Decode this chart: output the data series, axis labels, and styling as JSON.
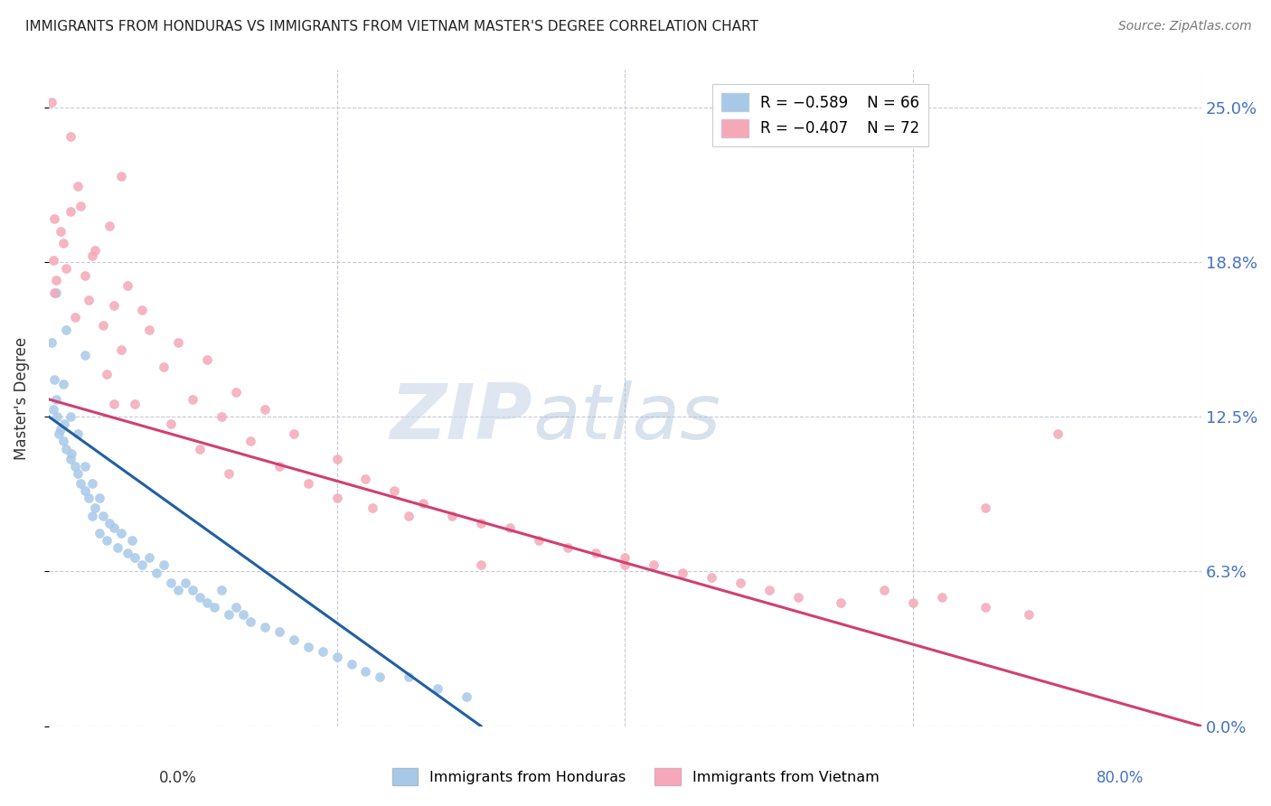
{
  "title": "IMMIGRANTS FROM HONDURAS VS IMMIGRANTS FROM VIETNAM MASTER'S DEGREE CORRELATION CHART",
  "source": "Source: ZipAtlas.com",
  "ylabel": "Master's Degree",
  "ytick_labels": [
    "0.0%",
    "6.3%",
    "12.5%",
    "18.8%",
    "25.0%"
  ],
  "ytick_values": [
    0.0,
    6.25,
    12.5,
    18.75,
    25.0
  ],
  "xlim": [
    0.0,
    80.0
  ],
  "ylim": [
    0.0,
    26.5
  ],
  "legend_r1": "R = −0.589",
  "legend_n1": "N = 66",
  "legend_r2": "R = −0.407",
  "legend_n2": "N = 72",
  "watermark_zip": "ZIP",
  "watermark_atlas": "atlas",
  "color_honduras": "#a8c8e8",
  "color_vietnam": "#f4a8b8",
  "color_line_honduras": "#2060a0",
  "color_line_vietnam": "#d04070",
  "color_yticks": "#4472c4",
  "marker_size": 60,
  "scatter_honduras": [
    [
      0.3,
      12.8
    ],
    [
      0.4,
      14.0
    ],
    [
      0.5,
      13.2
    ],
    [
      0.6,
      12.5
    ],
    [
      0.7,
      11.8
    ],
    [
      0.8,
      12.0
    ],
    [
      1.0,
      11.5
    ],
    [
      1.0,
      13.8
    ],
    [
      1.1,
      12.2
    ],
    [
      1.2,
      11.2
    ],
    [
      1.5,
      12.5
    ],
    [
      1.5,
      10.8
    ],
    [
      1.6,
      11.0
    ],
    [
      1.8,
      10.5
    ],
    [
      2.0,
      10.2
    ],
    [
      2.0,
      11.8
    ],
    [
      2.2,
      9.8
    ],
    [
      2.5,
      10.5
    ],
    [
      2.5,
      9.5
    ],
    [
      2.8,
      9.2
    ],
    [
      3.0,
      9.8
    ],
    [
      3.0,
      8.5
    ],
    [
      3.2,
      8.8
    ],
    [
      3.5,
      9.2
    ],
    [
      3.5,
      7.8
    ],
    [
      3.8,
      8.5
    ],
    [
      4.0,
      7.5
    ],
    [
      4.2,
      8.2
    ],
    [
      4.5,
      8.0
    ],
    [
      4.8,
      7.2
    ],
    [
      5.0,
      7.8
    ],
    [
      5.5,
      7.0
    ],
    [
      5.8,
      7.5
    ],
    [
      6.0,
      6.8
    ],
    [
      6.5,
      6.5
    ],
    [
      7.0,
      6.8
    ],
    [
      7.5,
      6.2
    ],
    [
      8.0,
      6.5
    ],
    [
      8.5,
      5.8
    ],
    [
      9.0,
      5.5
    ],
    [
      9.5,
      5.8
    ],
    [
      10.0,
      5.5
    ],
    [
      10.5,
      5.2
    ],
    [
      11.0,
      5.0
    ],
    [
      11.5,
      4.8
    ],
    [
      12.0,
      5.5
    ],
    [
      12.5,
      4.5
    ],
    [
      13.0,
      4.8
    ],
    [
      13.5,
      4.5
    ],
    [
      14.0,
      4.2
    ],
    [
      15.0,
      4.0
    ],
    [
      16.0,
      3.8
    ],
    [
      17.0,
      3.5
    ],
    [
      18.0,
      3.2
    ],
    [
      19.0,
      3.0
    ],
    [
      20.0,
      2.8
    ],
    [
      21.0,
      2.5
    ],
    [
      22.0,
      2.2
    ],
    [
      23.0,
      2.0
    ],
    [
      25.0,
      2.0
    ],
    [
      27.0,
      1.5
    ],
    [
      29.0,
      1.2
    ],
    [
      0.2,
      15.5
    ],
    [
      1.2,
      16.0
    ],
    [
      2.5,
      15.0
    ],
    [
      0.5,
      17.5
    ]
  ],
  "scatter_vietnam": [
    [
      0.2,
      25.2
    ],
    [
      1.5,
      23.8
    ],
    [
      5.0,
      22.2
    ],
    [
      2.0,
      21.8
    ],
    [
      2.2,
      21.0
    ],
    [
      1.5,
      20.8
    ],
    [
      0.4,
      20.5
    ],
    [
      0.8,
      20.0
    ],
    [
      4.2,
      20.2
    ],
    [
      1.0,
      19.5
    ],
    [
      3.2,
      19.2
    ],
    [
      3.0,
      19.0
    ],
    [
      0.3,
      18.8
    ],
    [
      1.2,
      18.5
    ],
    [
      2.5,
      18.2
    ],
    [
      0.5,
      18.0
    ],
    [
      5.5,
      17.8
    ],
    [
      0.4,
      17.5
    ],
    [
      2.8,
      17.2
    ],
    [
      4.5,
      17.0
    ],
    [
      6.5,
      16.8
    ],
    [
      1.8,
      16.5
    ],
    [
      3.8,
      16.2
    ],
    [
      7.0,
      16.0
    ],
    [
      9.0,
      15.5
    ],
    [
      5.0,
      15.2
    ],
    [
      11.0,
      14.8
    ],
    [
      8.0,
      14.5
    ],
    [
      4.0,
      14.2
    ],
    [
      13.0,
      13.5
    ],
    [
      10.0,
      13.2
    ],
    [
      6.0,
      13.0
    ],
    [
      4.5,
      13.0
    ],
    [
      15.0,
      12.8
    ],
    [
      12.0,
      12.5
    ],
    [
      8.5,
      12.2
    ],
    [
      17.0,
      11.8
    ],
    [
      14.0,
      11.5
    ],
    [
      10.5,
      11.2
    ],
    [
      20.0,
      10.8
    ],
    [
      16.0,
      10.5
    ],
    [
      12.5,
      10.2
    ],
    [
      22.0,
      10.0
    ],
    [
      18.0,
      9.8
    ],
    [
      24.0,
      9.5
    ],
    [
      20.0,
      9.2
    ],
    [
      26.0,
      9.0
    ],
    [
      22.5,
      8.8
    ],
    [
      28.0,
      8.5
    ],
    [
      30.0,
      8.2
    ],
    [
      32.0,
      8.0
    ],
    [
      34.0,
      7.5
    ],
    [
      36.0,
      7.2
    ],
    [
      38.0,
      7.0
    ],
    [
      25.0,
      8.5
    ],
    [
      40.0,
      6.8
    ],
    [
      42.0,
      6.5
    ],
    [
      44.0,
      6.2
    ],
    [
      46.0,
      6.0
    ],
    [
      48.0,
      5.8
    ],
    [
      50.0,
      5.5
    ],
    [
      52.0,
      5.2
    ],
    [
      55.0,
      5.0
    ],
    [
      58.0,
      5.5
    ],
    [
      60.0,
      5.0
    ],
    [
      62.0,
      5.2
    ],
    [
      65.0,
      4.8
    ],
    [
      68.0,
      4.5
    ],
    [
      70.0,
      11.8
    ],
    [
      65.0,
      8.8
    ],
    [
      30.0,
      6.5
    ],
    [
      40.0,
      6.5
    ]
  ],
  "regression_honduras": {
    "x_start": 0.0,
    "y_start": 12.5,
    "x_end": 30.0,
    "y_end": 0.0
  },
  "regression_vietnam": {
    "x_start": 0.0,
    "y_start": 13.2,
    "x_end": 80.0,
    "y_end": 0.0
  }
}
